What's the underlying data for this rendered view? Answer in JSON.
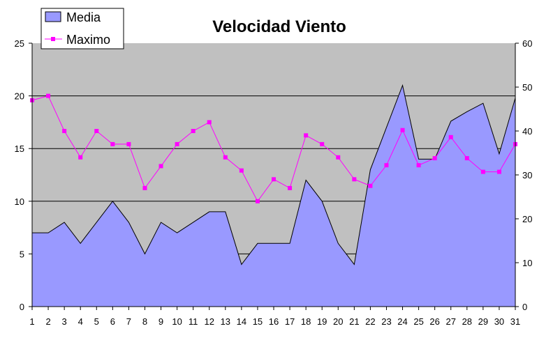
{
  "chart_data": {
    "type": "area",
    "title": "Velocidad Viento",
    "categories": [
      "1",
      "2",
      "3",
      "4",
      "5",
      "6",
      "7",
      "8",
      "9",
      "10",
      "11",
      "12",
      "13",
      "14",
      "15",
      "16",
      "17",
      "18",
      "19",
      "20",
      "21",
      "22",
      "23",
      "24",
      "25",
      "26",
      "27",
      "28",
      "29",
      "30",
      "31"
    ],
    "series": [
      {
        "name": "Media",
        "type": "area",
        "axis": "left",
        "values": [
          7,
          7,
          8,
          6,
          8,
          10,
          8,
          5,
          8,
          7,
          8,
          9,
          9,
          4,
          6,
          6,
          6,
          12,
          10,
          6,
          4,
          13,
          17,
          21,
          14,
          14,
          17.6,
          18.5,
          19.3,
          14.5,
          19.8
        ]
      },
      {
        "name": "Maximo",
        "type": "line",
        "axis": "right",
        "values": [
          47,
          48,
          40,
          34,
          40,
          37,
          37,
          27,
          32,
          37,
          40,
          42,
          34,
          31,
          24,
          29,
          27,
          39,
          37,
          34,
          29,
          27.5,
          32.2,
          40.2,
          32.2,
          33.8,
          38.6,
          33.8,
          30.7,
          30.7,
          37
        ]
      }
    ],
    "ylim_left": [
      0,
      25
    ],
    "yticks_left": [
      "0",
      "5",
      "10",
      "15",
      "20",
      "25"
    ],
    "ylim_right": [
      0,
      60
    ],
    "yticks_right": [
      "0",
      "10",
      "20",
      "30",
      "40",
      "50",
      "60"
    ],
    "grid": true,
    "legend_position": "top-left",
    "colors": {
      "plot_background": "#c0c0c0",
      "area_fill": "#9999ff",
      "line": "#ff00ff",
      "gridline": "#000000"
    }
  }
}
